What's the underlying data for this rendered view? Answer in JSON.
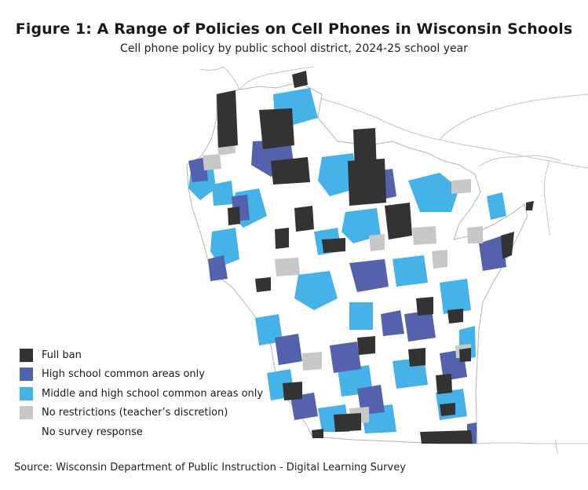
{
  "title": "Figure 1: A Range of Policies on Cell Phones in Wisconsin Schools",
  "subtitle": "Cell phone policy by public school district, 2024-25 school year",
  "legend": [
    {
      "label": "Full ban",
      "color": "#333333"
    },
    {
      "label": "High school common areas only",
      "color": "#5461ad"
    },
    {
      "label": "Middle and high school common areas only",
      "color": "#45b3e8"
    },
    {
      "label": "No restrictions (teacher’s discretion)",
      "color": "#c8c8c8"
    },
    {
      "label": "No survey response",
      "color": "#ffffff"
    }
  ],
  "source": "Source: Wisconsin Department of Public Instruction - Digital Learning Survey",
  "colors": {
    "background": "#ffffff",
    "state_border": "#b5b5b5",
    "neighbor_border": "#c4c4c4",
    "lake": "#ffffff"
  }
}
